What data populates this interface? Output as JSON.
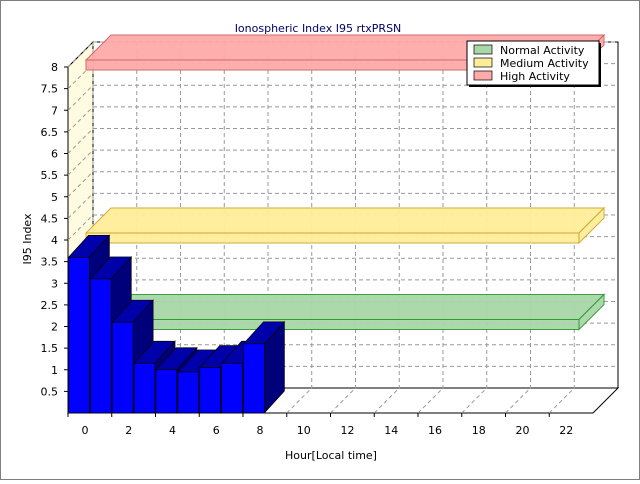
{
  "chart_data": {
    "type": "bar",
    "title": "Ionospheric Index I95 rtxPRSN",
    "xlabel": "Hour[Local time]",
    "ylabel": "I95 Index",
    "xlim": [
      0,
      24
    ],
    "ylim": [
      0,
      8
    ],
    "x_ticks": [
      "0",
      "2",
      "4",
      "6",
      "8",
      "10",
      "12",
      "14",
      "16",
      "18",
      "20",
      "22"
    ],
    "y_ticks": [
      "0.5",
      "1",
      "1.5",
      "2",
      "2.5",
      "3",
      "3.5",
      "4",
      "4.5",
      "5",
      "5.5",
      "6",
      "6.5",
      "7",
      "7.5",
      "8"
    ],
    "grid": true,
    "legend_position": "top-right",
    "series": [
      {
        "hours": [
          0,
          1,
          2,
          3,
          4,
          5,
          6,
          7,
          8
        ],
        "values": [
          3.6,
          3.1,
          2.1,
          1.15,
          1.0,
          0.95,
          1.05,
          1.15,
          1.6
        ],
        "color": "#0000ff"
      }
    ],
    "thresholds": [
      {
        "name": "Normal Activity",
        "value": 2,
        "color": "#a8d8a8",
        "edge": "#339933"
      },
      {
        "name": "Medium Activity",
        "value": 4,
        "color": "#ffee99",
        "edge": "#ccaa33"
      },
      {
        "name": "High Activity",
        "value": 8,
        "color": "#ffaaaa",
        "edge": "#cc6666"
      }
    ]
  }
}
